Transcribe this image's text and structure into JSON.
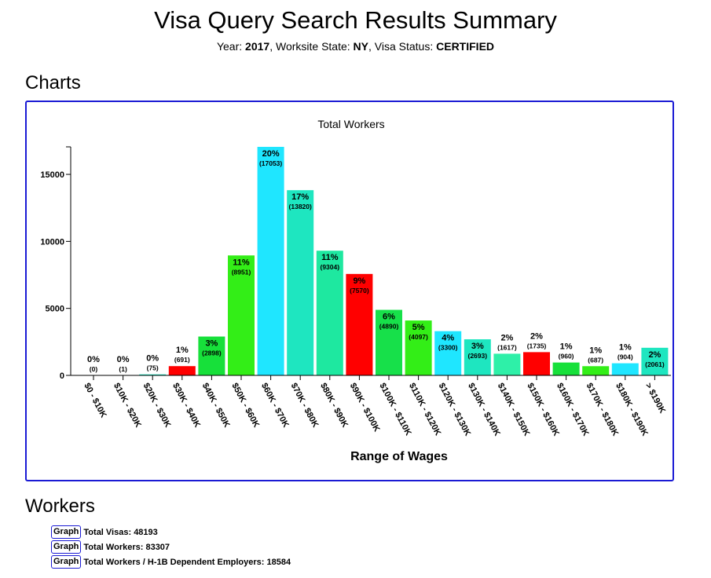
{
  "page": {
    "title": "Visa Query Search Results Summary",
    "subtitle": {
      "year_label": "Year:",
      "year": "2017",
      "state_label": ", Worksite State:",
      "state": "NY",
      "status_label": ", Visa Status:",
      "status": "CERTIFIED"
    }
  },
  "sections": {
    "charts_heading": "Charts",
    "workers_heading": "Workers"
  },
  "chart_data": {
    "type": "bar",
    "title": "Total Workers",
    "xlabel": "Range of Wages",
    "ylabel": "",
    "ylim": [
      0,
      17053
    ],
    "yticks": [
      0,
      5000,
      10000,
      15000
    ],
    "categories": [
      "$0 - $10K",
      "$10K - $20K",
      "$20K - $30K",
      "$30K - $40K",
      "$40K - $50K",
      "$50K - $60K",
      "$60K - $70K",
      "$70K - $80K",
      "$80K - $90K",
      "$90K - $100K",
      "$100K - $110K",
      "$110K - $120K",
      "$120K - $130K",
      "$130K - $140K",
      "$140K - $150K",
      "$150K - $160K",
      "$160K - $170K",
      "$170K - $180K",
      "$180K - $190K",
      "> $190K"
    ],
    "values": [
      0,
      1,
      75,
      691,
      2898,
      8951,
      17053,
      13820,
      9304,
      7570,
      4890,
      4097,
      3300,
      2693,
      1617,
      1735,
      960,
      687,
      904,
      2061
    ],
    "percent_labels": [
      "0%",
      "0%",
      "0%",
      "1%",
      "3%",
      "11%",
      "20%",
      "17%",
      "11%",
      "9%",
      "6%",
      "5%",
      "4%",
      "3%",
      "2%",
      "2%",
      "1%",
      "1%",
      "1%",
      "2%"
    ],
    "count_labels": [
      "(0)",
      "(1)",
      "(75)",
      "(691)",
      "(2898)",
      "(8951)",
      "(17053)",
      "(13820)",
      "(9304)",
      "(7570)",
      "(4890)",
      "(4097)",
      "(3300)",
      "(2693)",
      "(1617)",
      "(1735)",
      "(960)",
      "(687)",
      "(904)",
      "(2061)"
    ],
    "colors": [
      "#2ee85c",
      "#17e6a6",
      "#1ee6c0",
      "#ff0000",
      "#17e03a",
      "#33ee17",
      "#1fe6ff",
      "#1ee6c0",
      "#1ee8a0",
      "#ff0000",
      "#17e04a",
      "#33ee17",
      "#1fe6ff",
      "#1ee6c0",
      "#2ef0a8",
      "#ff0000",
      "#17e03a",
      "#33ee17",
      "#1fe6ff",
      "#1ee6c0"
    ],
    "grid": false,
    "legend": "none"
  },
  "workers": {
    "button_label": "Graph",
    "rows": [
      {
        "label": "Total Visas: 48193"
      },
      {
        "label": "Total Workers: 83307"
      },
      {
        "label": "Total Workers / H-1B Dependent Employers: 18584"
      }
    ]
  }
}
